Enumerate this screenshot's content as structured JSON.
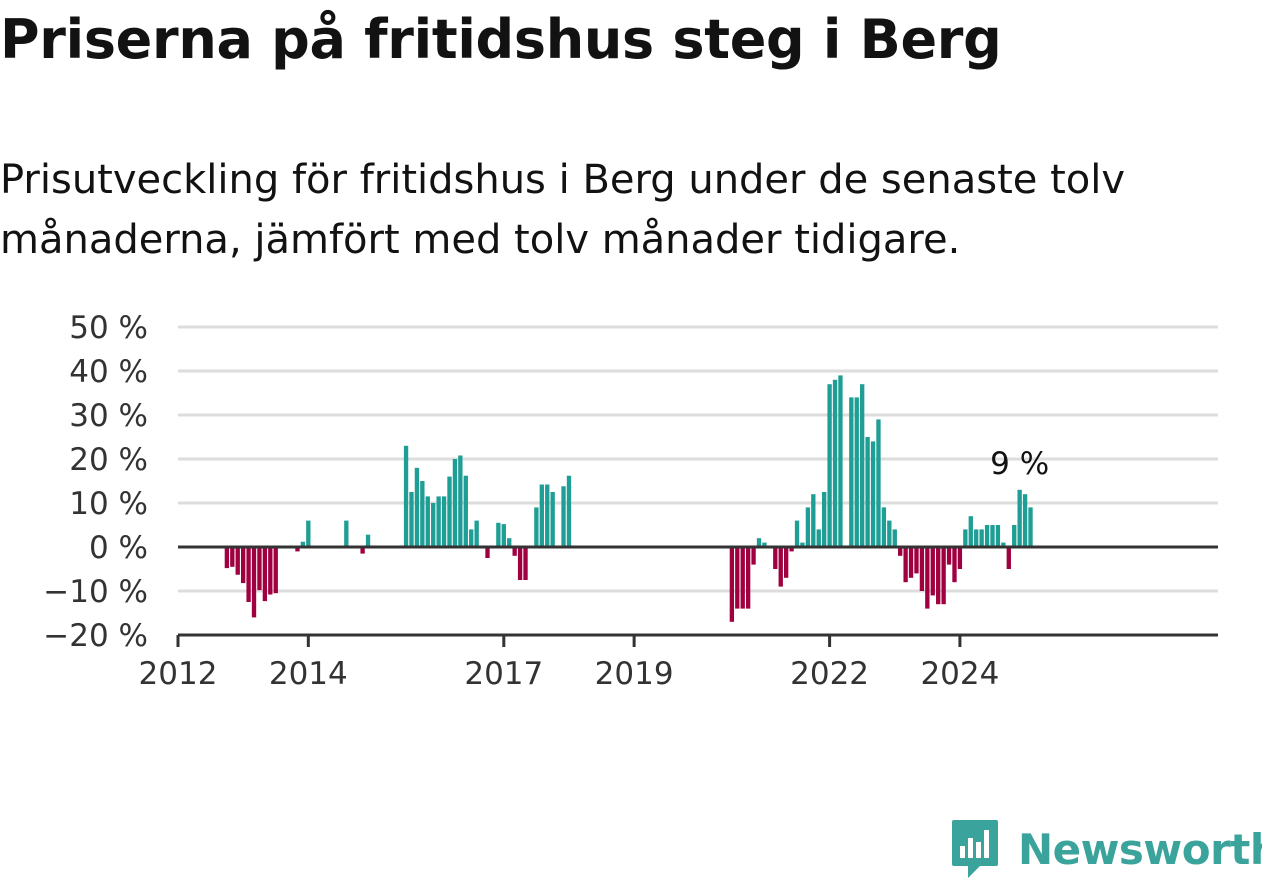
{
  "header": {
    "title": "Priserna på fritidshus steg i Berg",
    "subtitle": "Prisutveckling för fritidshus i Berg under de senaste tolv månaderna, jämfört med tolv månader tidigare."
  },
  "brand": {
    "name": "Newsworthy",
    "icon": "newsworthy-logo-icon",
    "color": "#3aa39b"
  },
  "colors": {
    "positive": "#1e9e94",
    "negative": "#a0003f",
    "grid": "#dddddd",
    "axis": "#333333",
    "tick_text": "#333333"
  },
  "chart_data": {
    "type": "bar",
    "title": "Priserna på fritidshus steg i Berg",
    "subtitle": "Prisutveckling för fritidshus i Berg under de senaste tolv månaderna, jämfört med tolv månader tidigare.",
    "xlabel": "",
    "ylabel": "",
    "ylim": [
      -20,
      50
    ],
    "yticks": [
      -20,
      -10,
      0,
      10,
      20,
      30,
      40,
      50
    ],
    "ytick_labels": [
      "−20 %",
      "−10 %",
      "0 %",
      "10 %",
      "20 %",
      "30 %",
      "40 %",
      "50 %"
    ],
    "xticks": [
      "2012-01",
      "2014-01",
      "2017-01",
      "2019-01",
      "2022-01",
      "2024-01"
    ],
    "xtick_labels": [
      "2012",
      "2014",
      "2017",
      "2019",
      "2022",
      "2024"
    ],
    "grid": true,
    "legend": "none",
    "annotation": {
      "x": "2024-12",
      "text": "9 %"
    },
    "values": [
      {
        "x": "2012-10",
        "y": -4.8
      },
      {
        "x": "2012-11",
        "y": -4.5
      },
      {
        "x": "2012-12",
        "y": -6.3
      },
      {
        "x": "2013-01",
        "y": -8.2
      },
      {
        "x": "2013-02",
        "y": -12.5
      },
      {
        "x": "2013-03",
        "y": -16
      },
      {
        "x": "2013-04",
        "y": -9.8
      },
      {
        "x": "2013-05",
        "y": -12.3
      },
      {
        "x": "2013-06",
        "y": -10.8
      },
      {
        "x": "2013-07",
        "y": -10.5
      },
      {
        "x": "2013-11",
        "y": -1
      },
      {
        "x": "2013-12",
        "y": 1.2
      },
      {
        "x": "2014-01",
        "y": 6
      },
      {
        "x": "2014-08",
        "y": 6
      },
      {
        "x": "2014-11",
        "y": -1.5
      },
      {
        "x": "2014-12",
        "y": 2.8
      },
      {
        "x": "2015-07",
        "y": 23
      },
      {
        "x": "2015-08",
        "y": 12.5
      },
      {
        "x": "2015-09",
        "y": 18
      },
      {
        "x": "2015-10",
        "y": 15
      },
      {
        "x": "2015-11",
        "y": 11.5
      },
      {
        "x": "2015-12",
        "y": 10
      },
      {
        "x": "2016-01",
        "y": 11.5
      },
      {
        "x": "2016-02",
        "y": 11.5
      },
      {
        "x": "2016-03",
        "y": 16
      },
      {
        "x": "2016-04",
        "y": 20
      },
      {
        "x": "2016-05",
        "y": 20.8
      },
      {
        "x": "2016-06",
        "y": 16.2
      },
      {
        "x": "2016-07",
        "y": 4
      },
      {
        "x": "2016-08",
        "y": 6
      },
      {
        "x": "2016-10",
        "y": -2.5
      },
      {
        "x": "2016-12",
        "y": 5.5
      },
      {
        "x": "2017-01",
        "y": 5.2
      },
      {
        "x": "2017-02",
        "y": 2
      },
      {
        "x": "2017-03",
        "y": -2
      },
      {
        "x": "2017-04",
        "y": -7.5
      },
      {
        "x": "2017-05",
        "y": -7.5
      },
      {
        "x": "2017-07",
        "y": 9
      },
      {
        "x": "2017-08",
        "y": 14.2
      },
      {
        "x": "2017-09",
        "y": 14.2
      },
      {
        "x": "2017-10",
        "y": 12.5
      },
      {
        "x": "2017-12",
        "y": 13.8
      },
      {
        "x": "2018-01",
        "y": 16.2
      },
      {
        "x": "2020-07",
        "y": -17
      },
      {
        "x": "2020-08",
        "y": -14
      },
      {
        "x": "2020-09",
        "y": -14
      },
      {
        "x": "2020-10",
        "y": -14
      },
      {
        "x": "2020-11",
        "y": -4
      },
      {
        "x": "2020-12",
        "y": 2
      },
      {
        "x": "2021-01",
        "y": 1
      },
      {
        "x": "2021-03",
        "y": -5
      },
      {
        "x": "2021-04",
        "y": -9
      },
      {
        "x": "2021-05",
        "y": -7
      },
      {
        "x": "2021-06",
        "y": -1
      },
      {
        "x": "2021-07",
        "y": 6
      },
      {
        "x": "2021-08",
        "y": 1
      },
      {
        "x": "2021-09",
        "y": 9
      },
      {
        "x": "2021-10",
        "y": 12
      },
      {
        "x": "2021-11",
        "y": 4
      },
      {
        "x": "2021-12",
        "y": 12.5
      },
      {
        "x": "2022-01",
        "y": 37
      },
      {
        "x": "2022-02",
        "y": 38
      },
      {
        "x": "2022-03",
        "y": 39
      },
      {
        "x": "2022-05",
        "y": 34
      },
      {
        "x": "2022-06",
        "y": 34
      },
      {
        "x": "2022-07",
        "y": 37
      },
      {
        "x": "2022-08",
        "y": 25
      },
      {
        "x": "2022-09",
        "y": 24
      },
      {
        "x": "2022-10",
        "y": 29
      },
      {
        "x": "2022-11",
        "y": 9
      },
      {
        "x": "2022-12",
        "y": 6
      },
      {
        "x": "2023-01",
        "y": 4
      },
      {
        "x": "2023-02",
        "y": -2
      },
      {
        "x": "2023-03",
        "y": -8
      },
      {
        "x": "2023-04",
        "y": -7
      },
      {
        "x": "2023-05",
        "y": -6
      },
      {
        "x": "2023-06",
        "y": -10
      },
      {
        "x": "2023-07",
        "y": -14
      },
      {
        "x": "2023-08",
        "y": -11
      },
      {
        "x": "2023-09",
        "y": -13
      },
      {
        "x": "2023-10",
        "y": -13
      },
      {
        "x": "2023-11",
        "y": -4
      },
      {
        "x": "2023-12",
        "y": -8
      },
      {
        "x": "2024-01",
        "y": -5
      },
      {
        "x": "2024-02",
        "y": 4
      },
      {
        "x": "2024-03",
        "y": 7
      },
      {
        "x": "2024-04",
        "y": 4
      },
      {
        "x": "2024-05",
        "y": 4
      },
      {
        "x": "2024-06",
        "y": 5
      },
      {
        "x": "2024-07",
        "y": 5
      },
      {
        "x": "2024-08",
        "y": 5
      },
      {
        "x": "2024-09",
        "y": 1
      },
      {
        "x": "2024-10",
        "y": -5
      },
      {
        "x": "2024-11",
        "y": 5
      },
      {
        "x": "2024-12",
        "y": 13
      },
      {
        "x": "2025-01",
        "y": 12
      },
      {
        "x": "2025-02",
        "y": 9
      }
    ]
  }
}
